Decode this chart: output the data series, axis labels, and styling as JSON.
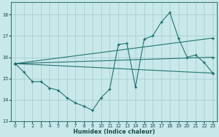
{
  "bg_color": "#c8e8ea",
  "grid_color": "#a0c8ca",
  "line_color": "#1a6e6a",
  "xlabel": "Humidex (Indice chaleur)",
  "xlim": [
    -0.5,
    23.5
  ],
  "ylim": [
    13,
    18.6
  ],
  "yticks": [
    13,
    14,
    15,
    16,
    17,
    18
  ],
  "xticks": [
    0,
    1,
    2,
    3,
    4,
    5,
    6,
    7,
    8,
    9,
    10,
    11,
    12,
    13,
    14,
    15,
    16,
    17,
    18,
    19,
    20,
    21,
    22,
    23
  ],
  "main_line": {
    "x": [
      0,
      1,
      2,
      3,
      4,
      5,
      6,
      7,
      8,
      9,
      10,
      11,
      12,
      13,
      14,
      15,
      16,
      17,
      18,
      19,
      20,
      21,
      22,
      23
    ],
    "y": [
      15.7,
      15.3,
      14.85,
      14.85,
      14.55,
      14.45,
      14.1,
      13.85,
      13.7,
      13.5,
      14.1,
      14.5,
      16.6,
      16.65,
      14.6,
      16.85,
      17.0,
      17.65,
      18.1,
      16.9,
      16.0,
      16.1,
      15.75,
      15.25
    ]
  },
  "fan_lines": [
    {
      "x": [
        0,
        23
      ],
      "y": [
        15.7,
        15.25
      ]
    },
    {
      "x": [
        0,
        23
      ],
      "y": [
        15.7,
        16.0
      ]
    },
    {
      "x": [
        0,
        23
      ],
      "y": [
        15.7,
        16.9
      ]
    }
  ]
}
